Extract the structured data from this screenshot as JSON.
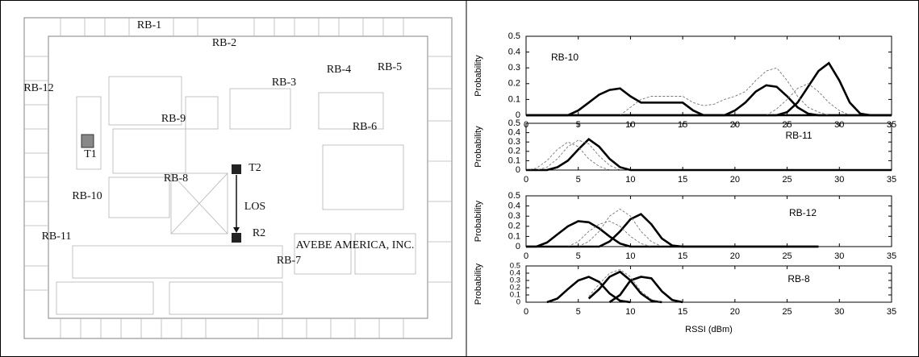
{
  "floor_plan": {
    "labels": [
      "RB-1",
      "RB-2",
      "RB-3",
      "RB-4",
      "RB-5",
      "RB-12",
      "RB-9",
      "RB-6",
      "T1",
      "T2",
      "RB-8",
      "RB-10",
      "LOS",
      "R2",
      "RB-11",
      "RB-7",
      "AVEBE AMERICA, INC."
    ]
  },
  "chart_data": [
    {
      "type": "line",
      "annotation": "RB-10",
      "ylabel": "Probability",
      "x": [
        0,
        1,
        2,
        3,
        4,
        5,
        6,
        7,
        8,
        9,
        10,
        11,
        12,
        13,
        14,
        15,
        16,
        17,
        18,
        19,
        20,
        21,
        22,
        23,
        24,
        25,
        26,
        27,
        28,
        29,
        30,
        31,
        32,
        33,
        34,
        35
      ],
      "xlim": [
        0,
        35
      ],
      "xticks": [
        0,
        5,
        10,
        15,
        20,
        25,
        30,
        35
      ],
      "ylim": [
        0,
        0.5
      ],
      "yticks": [
        0,
        0.1,
        0.2,
        0.3,
        0.4,
        0.5
      ],
      "series": [
        {
          "color": "#000000",
          "style": "solid",
          "values": [
            0,
            0,
            0,
            0,
            0,
            0.03,
            0.08,
            0.13,
            0.16,
            0.17,
            0.12,
            0.08,
            0.08,
            0.08,
            0.08,
            0.08,
            0.03,
            0,
            0,
            0,
            0,
            0,
            0,
            0,
            0,
            0,
            0,
            0,
            0,
            0,
            0,
            0,
            0,
            0,
            0,
            0
          ]
        },
        {
          "color": "#000000",
          "style": "solid",
          "values": [
            0,
            0,
            0,
            0,
            0,
            0,
            0,
            0,
            0,
            0,
            0,
            0,
            0,
            0,
            0,
            0,
            0,
            0,
            0,
            0,
            0,
            0,
            0,
            0,
            0,
            0.02,
            0.08,
            0.18,
            0.28,
            0.33,
            0.22,
            0.08,
            0.01,
            0,
            0,
            0
          ]
        },
        {
          "color": "#000000",
          "style": "solid",
          "values": [
            0,
            0,
            0,
            0,
            0,
            0,
            0,
            0,
            0,
            0,
            0,
            0,
            0,
            0,
            0,
            0,
            0,
            0,
            0,
            0,
            0.03,
            0.08,
            0.15,
            0.19,
            0.18,
            0.12,
            0.05,
            0.01,
            0,
            0,
            0,
            0,
            0,
            0,
            0,
            0
          ]
        },
        {
          "color": "#777777",
          "style": "dashed",
          "values": [
            null,
            null,
            null,
            null,
            null,
            null,
            null,
            null,
            null,
            0,
            0.05,
            0.1,
            0.12,
            0.12,
            0.12,
            0.12,
            0.08,
            0.06,
            0.07,
            0.1,
            0.12,
            0.15,
            0.22,
            0.28,
            0.3,
            0.22,
            0.12,
            0.05,
            0.02,
            0,
            null,
            null,
            null,
            null,
            null,
            null
          ]
        },
        {
          "color": "#777777",
          "style": "dashed",
          "values": [
            null,
            null,
            null,
            null,
            null,
            null,
            null,
            null,
            null,
            null,
            null,
            null,
            null,
            null,
            null,
            null,
            null,
            null,
            null,
            null,
            null,
            null,
            null,
            0,
            0.04,
            0.1,
            0.17,
            0.2,
            0.15,
            0.08,
            0.03,
            0,
            null,
            null,
            null,
            null
          ]
        }
      ]
    },
    {
      "type": "line",
      "annotation": "RB-11",
      "ylabel": "Probability",
      "x": [
        0,
        1,
        2,
        3,
        4,
        5,
        6,
        7,
        8,
        9,
        10,
        11,
        12,
        13,
        14,
        15,
        16,
        17,
        18,
        19,
        20,
        21,
        22,
        23,
        24,
        25,
        26,
        27,
        28,
        29,
        30,
        31,
        32,
        33,
        34,
        35
      ],
      "xlim": [
        0,
        35
      ],
      "xticks": [
        0,
        5,
        10,
        15,
        20,
        25,
        30,
        35
      ],
      "ylim": [
        0,
        0.5
      ],
      "yticks": [
        0,
        0.1,
        0.2,
        0.3,
        0.4,
        0.5
      ],
      "series": [
        {
          "color": "#000000",
          "style": "solid",
          "values": [
            0,
            0,
            0,
            0.03,
            0.1,
            0.22,
            0.33,
            0.25,
            0.12,
            0.03,
            0,
            0,
            0,
            0,
            0,
            0,
            0,
            0,
            0,
            0,
            0,
            0,
            0,
            0,
            0,
            0,
            0,
            0,
            0,
            0,
            0,
            0,
            0,
            0,
            0,
            0
          ]
        },
        {
          "color": "#777777",
          "style": "dashed",
          "values": [
            0,
            0.02,
            0.1,
            0.22,
            0.3,
            0.25,
            0.12,
            0.04,
            0,
            null,
            null,
            null,
            null,
            null,
            null,
            null,
            null,
            null,
            null,
            null,
            null,
            null,
            null,
            null,
            null,
            null,
            null,
            null,
            null,
            null,
            null,
            null,
            null,
            null,
            null,
            null
          ]
        },
        {
          "color": "#777777",
          "style": "dashed",
          "values": [
            0,
            0,
            0.03,
            0.12,
            0.25,
            0.32,
            0.28,
            0.15,
            0.05,
            0,
            null,
            null,
            null,
            null,
            null,
            null,
            null,
            null,
            null,
            null,
            null,
            null,
            null,
            null,
            null,
            null,
            null,
            null,
            null,
            null,
            null,
            null,
            null,
            null,
            null,
            null
          ]
        }
      ]
    },
    {
      "type": "line",
      "annotation": "RB-12",
      "ylabel": "Probability",
      "x": [
        0,
        1,
        2,
        3,
        4,
        5,
        6,
        7,
        8,
        9,
        10,
        11,
        12,
        13,
        14,
        15,
        16,
        17,
        18,
        19,
        20,
        21,
        22,
        23,
        24,
        25,
        26,
        27,
        28,
        29,
        30,
        31,
        32,
        33,
        34,
        35
      ],
      "xlim": [
        0,
        35
      ],
      "xticks": [
        0,
        5,
        10,
        15,
        20,
        25,
        30,
        35
      ],
      "ylim": [
        0,
        0.5
      ],
      "yticks": [
        0,
        0.1,
        0.2,
        0.3,
        0.4,
        0.5
      ],
      "series": [
        {
          "color": "#000000",
          "style": "solid",
          "values": [
            0,
            0,
            0.04,
            0.12,
            0.2,
            0.25,
            0.24,
            0.18,
            0.1,
            0.03,
            0,
            0,
            0,
            0,
            0,
            0,
            0,
            0,
            0,
            0,
            0,
            0,
            0,
            0,
            0,
            0,
            0,
            0,
            0,
            null,
            null,
            null,
            null,
            null,
            null,
            null
          ]
        },
        {
          "color": "#000000",
          "style": "solid",
          "values": [
            0,
            0,
            0,
            0,
            0,
            0,
            0,
            0,
            0.05,
            0.15,
            0.27,
            0.32,
            0.22,
            0.08,
            0.01,
            0,
            0,
            0,
            0,
            0,
            0,
            0,
            0,
            0,
            0,
            0,
            0,
            0,
            0,
            null,
            null,
            null,
            null,
            null,
            null,
            null
          ]
        },
        {
          "color": "#777777",
          "style": "dashed",
          "values": [
            null,
            null,
            null,
            null,
            null,
            0,
            0.05,
            0.15,
            0.3,
            0.37,
            0.3,
            0.15,
            0.05,
            0,
            null,
            null,
            null,
            null,
            null,
            null,
            null,
            null,
            null,
            null,
            null,
            null,
            null,
            null,
            null,
            null,
            null,
            null,
            null,
            null,
            null,
            null
          ]
        },
        {
          "color": "#777777",
          "style": "dashed",
          "values": [
            null,
            null,
            null,
            null,
            0,
            0.05,
            0.15,
            0.22,
            0.25,
            0.2,
            0.1,
            0.03,
            0,
            null,
            null,
            null,
            null,
            null,
            null,
            null,
            null,
            null,
            null,
            null,
            null,
            null,
            null,
            null,
            null,
            null,
            null,
            null,
            null,
            null,
            null,
            null
          ]
        }
      ]
    },
    {
      "type": "line",
      "annotation": "RB-8",
      "ylabel": "Probability",
      "xlabel": "RSSI (dBm)",
      "x": [
        0,
        1,
        2,
        3,
        4,
        5,
        6,
        7,
        8,
        9,
        10,
        11,
        12,
        13,
        14,
        15,
        16,
        17,
        18,
        19,
        20,
        21,
        22,
        23,
        24,
        25,
        26,
        27,
        28,
        29,
        30,
        31,
        32,
        33,
        34,
        35
      ],
      "xlim": [
        0,
        35
      ],
      "xticks": [
        0,
        5,
        10,
        15,
        20,
        25,
        30,
        35
      ],
      "ylim": [
        0,
        0.5
      ],
      "yticks": [
        0,
        0.1,
        0.2,
        0.3,
        0.4,
        0.5
      ],
      "series": [
        {
          "color": "#000000",
          "style": "solid",
          "values": [
            null,
            null,
            0,
            0.05,
            0.18,
            0.3,
            0.35,
            0.28,
            0.12,
            0.02,
            0,
            null,
            null,
            null,
            null,
            null,
            null,
            null,
            null,
            null,
            null,
            null,
            null,
            null,
            null,
            null,
            null,
            null,
            null,
            null,
            null,
            null,
            null,
            null,
            null,
            null
          ]
        },
        {
          "color": "#000000",
          "style": "solid",
          "values": [
            null,
            null,
            null,
            null,
            null,
            null,
            0.05,
            0.18,
            0.35,
            0.42,
            0.3,
            0.12,
            0.02,
            0,
            null,
            null,
            null,
            null,
            null,
            null,
            null,
            null,
            null,
            null,
            null,
            null,
            null,
            null,
            null,
            null,
            null,
            null,
            null,
            null,
            null,
            null
          ]
        },
        {
          "color": "#000000",
          "style": "solid",
          "values": [
            null,
            null,
            null,
            null,
            null,
            null,
            null,
            null,
            0,
            0.1,
            0.3,
            0.35,
            0.33,
            0.15,
            0.03,
            0,
            null,
            null,
            null,
            null,
            null,
            null,
            null,
            null,
            null,
            null,
            null,
            null,
            null,
            null,
            null,
            null,
            null,
            null,
            null,
            null
          ]
        },
        {
          "color": "#777777",
          "style": "dashed",
          "values": [
            null,
            null,
            null,
            null,
            null,
            null,
            0.08,
            0.25,
            0.4,
            0.45,
            0.35,
            0.15,
            0.04,
            0,
            null,
            null,
            null,
            null,
            null,
            null,
            null,
            null,
            null,
            null,
            null,
            null,
            null,
            null,
            null,
            null,
            null,
            null,
            null,
            null,
            null,
            null
          ]
        }
      ]
    }
  ]
}
